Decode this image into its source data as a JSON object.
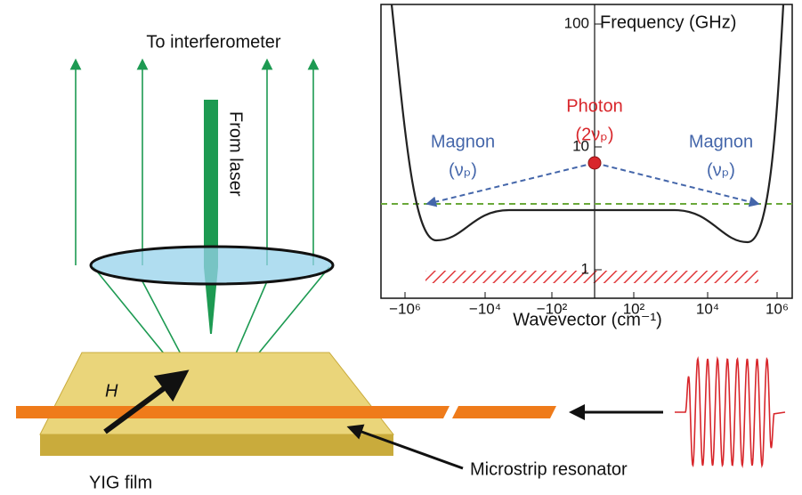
{
  "labels": {
    "to_interferometer": "To interferometer",
    "from_laser": "From laser",
    "field": "H",
    "film": "YIG film",
    "resonator": "Microstrip resonator"
  },
  "inset": {
    "y_axis_label": "Frequency (GHz)",
    "x_axis_label": "Wavevector (cm⁻¹)",
    "yticks": [
      "100",
      "10",
      "1"
    ],
    "xticks": [
      "−10⁶",
      "−10⁴",
      "−10²",
      "10²",
      "10⁴",
      "10⁶"
    ],
    "photon": "Photon",
    "photon_freq": "(2νₚ)",
    "magnon_left": "Magnon",
    "magnon_left_freq": "(νₚ)",
    "magnon_right": "Magnon",
    "magnon_right_freq": "(νₚ)"
  }
}
